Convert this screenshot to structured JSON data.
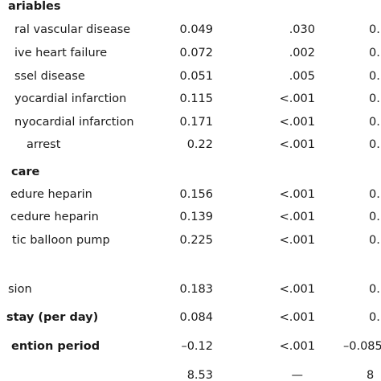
{
  "rows": [
    {
      "label": "ariables",
      "bold": true,
      "c1": "",
      "c2": "",
      "c3": ""
    },
    {
      "label": "ral vascular disease",
      "bold": false,
      "c1": "0.049",
      "c2": ".030",
      "c3": "0."
    },
    {
      "label": "ive heart failure",
      "bold": false,
      "c1": "0.072",
      "c2": ".002",
      "c3": "0."
    },
    {
      "label": "ssel disease",
      "bold": false,
      "c1": "0.051",
      "c2": ".005",
      "c3": "0."
    },
    {
      "label": "yocardial infarction",
      "bold": false,
      "c1": "0.115",
      "c2": "<.001",
      "c3": "0."
    },
    {
      "label": "nyocardial infarction",
      "bold": false,
      "c1": "0.171",
      "c2": "<.001",
      "c3": "0."
    },
    {
      "label": "arrest",
      "bold": false,
      "c1": "0.22",
      "c2": "<.001",
      "c3": "0."
    },
    {
      "label": "care",
      "bold": true,
      "c1": "",
      "c2": "",
      "c3": ""
    },
    {
      "label": "edure heparin",
      "bold": false,
      "c1": "0.156",
      "c2": "<.001",
      "c3": "0."
    },
    {
      "label": "cedure heparin",
      "bold": false,
      "c1": "0.139",
      "c2": "<.001",
      "c3": "0."
    },
    {
      "label": "tic balloon pump",
      "bold": false,
      "c1": "0.225",
      "c2": "<.001",
      "c3": "0."
    },
    {
      "label": "sion",
      "bold": false,
      "c1": "0.183",
      "c2": "<.001",
      "c3": "0."
    },
    {
      "label": "stay (per day)",
      "bold": true,
      "c1": "0.084",
      "c2": "<.001",
      "c3": "0."
    },
    {
      "label": "ention period",
      "bold": true,
      "c1": "–0.12",
      "c2": "<.001",
      "c3": "–0.085"
    },
    {
      "label": "",
      "bold": false,
      "c1": "8.53",
      "c2": "—",
      "c3": "8"
    }
  ]
}
